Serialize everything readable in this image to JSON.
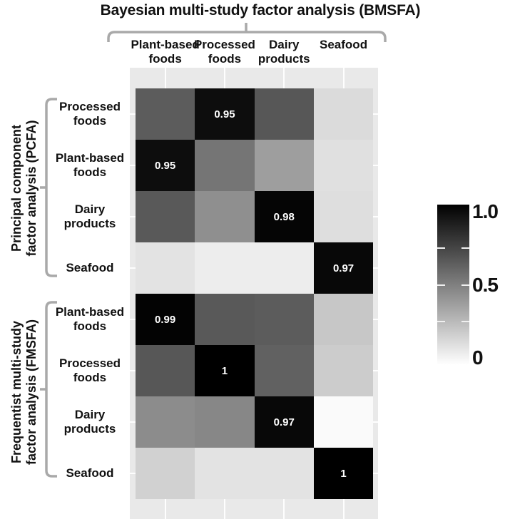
{
  "chart_data": {
    "type": "heatmap",
    "title": "Bayesian multi-study factor analysis (BMSFA)",
    "columns": [
      "Plant-based foods",
      "Processed foods",
      "Dairy products",
      "Seafood"
    ],
    "row_groups": [
      {
        "name": "Principal component factor analysis (PCFA)",
        "name_lines": [
          "Principal component",
          "factor analysis (PCFA)"
        ],
        "rows": [
          {
            "label": "Processed foods",
            "values": [
              0.64,
              0.95,
              0.66,
              0.14
            ],
            "cell_labels": [
              "",
              "0.95",
              "",
              ""
            ]
          },
          {
            "label": "Plant-based foods",
            "values": [
              0.95,
              0.54,
              0.38,
              0.12
            ],
            "cell_labels": [
              "0.95",
              "",
              "",
              ""
            ]
          },
          {
            "label": "Dairy products",
            "values": [
              0.65,
              0.44,
              0.98,
              0.13
            ],
            "cell_labels": [
              "",
              "",
              "0.98",
              ""
            ]
          },
          {
            "label": "Seafood",
            "values": [
              0.11,
              0.07,
              0.07,
              0.97
            ],
            "cell_labels": [
              "",
              "",
              "",
              "0.97"
            ]
          }
        ]
      },
      {
        "name": "Frequentist multi-study factor analysis (FMSFA)",
        "name_lines": [
          "Frequentist multi-study",
          "factor analysis (FMSFA)"
        ],
        "rows": [
          {
            "label": "Plant-based foods",
            "values": [
              0.99,
              0.65,
              0.64,
              0.22
            ],
            "cell_labels": [
              "0.99",
              "",
              "",
              ""
            ]
          },
          {
            "label": "Processed foods",
            "values": [
              0.66,
              1,
              0.62,
              0.2
            ],
            "cell_labels": [
              "",
              "1",
              "",
              ""
            ]
          },
          {
            "label": "Dairy products",
            "values": [
              0.45,
              0.47,
              0.97,
              0.02
            ],
            "cell_labels": [
              "",
              "",
              "0.97",
              ""
            ]
          },
          {
            "label": "Seafood",
            "values": [
              0.18,
              0.11,
              0.11,
              1
            ],
            "cell_labels": [
              "",
              "",
              "",
              "1"
            ]
          }
        ]
      }
    ],
    "value_range": [
      0,
      1
    ],
    "colorbar": {
      "tick_labels": [
        "1.0",
        "0.5",
        "0"
      ],
      "tick_values": [
        1,
        0.5,
        0
      ],
      "minor_tick_values": [
        0.75,
        0.5,
        0.25
      ],
      "high_color": "#000000",
      "low_color": "#ffffff",
      "position": "right"
    },
    "colors": {
      "panel_bg": "#e9e9e9",
      "grid": "#ffffff",
      "bracket": "#a9a9a9",
      "cell_label_text": "#ffffff"
    },
    "grid": true
  }
}
